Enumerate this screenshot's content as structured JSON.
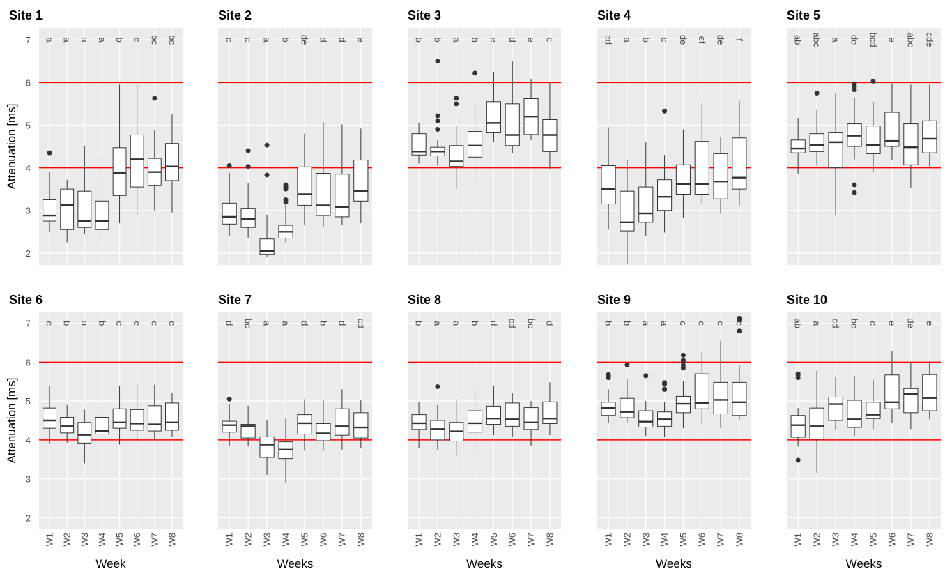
{
  "chart_data": [
    {
      "type": "boxplot",
      "title": "Site 1",
      "ylabel": "Attenuation [ms]",
      "ylim": [
        1.72,
        7.28
      ],
      "yticks": [
        2,
        3,
        4,
        5,
        6,
        7
      ],
      "hlines": [
        4,
        6
      ],
      "hline_color": "#ff0000",
      "letters": [
        "a",
        "a",
        "a",
        "a",
        "b",
        "c",
        "bc",
        "bc"
      ],
      "low": [
        2.5,
        2.25,
        2.45,
        2.35,
        2.7,
        2.9,
        3.0,
        2.95
      ],
      "q1": [
        2.75,
        2.55,
        2.6,
        2.55,
        3.35,
        3.55,
        3.58,
        3.7
      ],
      "median": [
        2.88,
        3.13,
        2.75,
        2.75,
        3.88,
        4.2,
        3.9,
        4.03
      ],
      "q3": [
        3.25,
        3.5,
        3.45,
        3.22,
        4.47,
        4.77,
        4.22,
        4.57
      ],
      "high": [
        3.9,
        3.72,
        4.52,
        4.22,
        5.95,
        5.98,
        4.88,
        5.25
      ],
      "outliers": [
        [
          4.35
        ],
        [],
        [],
        [],
        [],
        [],
        [
          5.63
        ],
        []
      ]
    },
    {
      "type": "boxplot",
      "title": "Site 2",
      "ylim": [
        1.72,
        7.28
      ],
      "yticks": [
        2,
        3,
        4,
        5,
        6,
        7
      ],
      "hlines": [
        4,
        6
      ],
      "hline_color": "#ff0000",
      "letters": [
        "c",
        "c",
        "a",
        "b",
        "de",
        "d",
        "d",
        "e"
      ],
      "low": [
        2.4,
        2.35,
        1.9,
        2.25,
        2.65,
        2.6,
        2.65,
        2.7
      ],
      "q1": [
        2.68,
        2.6,
        1.97,
        2.35,
        3.12,
        2.88,
        2.85,
        3.22
      ],
      "median": [
        2.85,
        2.8,
        2.05,
        2.5,
        3.38,
        3.12,
        3.08,
        3.45
      ],
      "q3": [
        3.17,
        3.05,
        2.33,
        2.65,
        4.02,
        3.87,
        3.85,
        4.18
      ],
      "high": [
        3.88,
        3.65,
        2.9,
        3.15,
        4.8,
        5.07,
        5.02,
        4.92
      ],
      "outliers": [
        [
          4.05
        ],
        [
          4.03,
          4.4
        ],
        [
          3.83,
          4.53
        ],
        [
          3.2,
          3.25,
          3.5,
          3.55,
          3.6
        ],
        [],
        [],
        [],
        []
      ]
    },
    {
      "type": "boxplot",
      "title": "Site 3",
      "ylim": [
        1.72,
        7.28
      ],
      "yticks": [
        2,
        3,
        4,
        5,
        6,
        7
      ],
      "hlines": [
        4,
        6
      ],
      "hline_color": "#ff0000",
      "letters": [
        "b",
        "b",
        "a",
        "b",
        "e",
        "d",
        "e",
        "c"
      ],
      "low": [
        4.1,
        4.05,
        3.5,
        3.72,
        4.6,
        4.35,
        4.65,
        3.98
      ],
      "q1": [
        4.3,
        4.28,
        4.03,
        4.25,
        4.82,
        4.52,
        4.78,
        4.38
      ],
      "median": [
        4.38,
        4.38,
        4.15,
        4.52,
        5.05,
        4.77,
        5.2,
        4.77
      ],
      "q3": [
        4.8,
        4.48,
        4.52,
        4.85,
        5.55,
        5.5,
        5.62,
        5.13
      ],
      "high": [
        5.05,
        4.65,
        4.98,
        5.5,
        6.25,
        6.5,
        6.08,
        6.0
      ],
      "outliers": [
        [],
        [
          4.9,
          5.1,
          5.22,
          6.5
        ],
        [
          5.5,
          5.63
        ],
        [
          6.22
        ],
        [],
        [],
        [],
        []
      ]
    },
    {
      "type": "boxplot",
      "title": "Site 4",
      "ylim": [
        1.72,
        7.28
      ],
      "yticks": [
        2,
        3,
        4,
        5,
        6,
        7
      ],
      "hlines": [
        4,
        6
      ],
      "hline_color": "#ff0000",
      "letters": [
        "cd",
        "a",
        "b",
        "c",
        "de",
        "ef",
        "de",
        "f"
      ],
      "low": [
        2.55,
        1.75,
        2.4,
        2.48,
        2.83,
        3.15,
        2.92,
        3.1
      ],
      "q1": [
        3.15,
        2.52,
        2.72,
        3.0,
        3.38,
        3.38,
        3.27,
        3.5
      ],
      "median": [
        3.5,
        2.72,
        2.93,
        3.32,
        3.62,
        3.62,
        3.68,
        3.77
      ],
      "q3": [
        4.05,
        3.45,
        3.55,
        3.72,
        4.07,
        4.62,
        4.33,
        4.7
      ],
      "high": [
        4.95,
        4.18,
        4.6,
        4.3,
        4.9,
        5.52,
        4.72,
        5.57
      ],
      "outliers": [
        [],
        [],
        [],
        [
          5.33
        ],
        [],
        [],
        [],
        []
      ]
    },
    {
      "type": "boxplot",
      "title": "Site 5",
      "ylim": [
        1.72,
        7.28
      ],
      "yticks": [
        2,
        3,
        4,
        5,
        6,
        7
      ],
      "hlines": [
        4,
        6
      ],
      "hline_color": "#ff0000",
      "letters": [
        "ab",
        "abc",
        "a",
        "de",
        "bcd",
        "e",
        "abc",
        "cde"
      ],
      "low": [
        3.85,
        4.05,
        2.88,
        4.2,
        3.9,
        4.18,
        3.52,
        4.0
      ],
      "q1": [
        4.35,
        4.38,
        4.0,
        4.5,
        4.33,
        4.5,
        4.07,
        4.35
      ],
      "median": [
        4.45,
        4.53,
        4.6,
        4.75,
        4.53,
        4.63,
        4.48,
        4.68
      ],
      "q3": [
        4.65,
        4.8,
        4.82,
        5.03,
        4.98,
        5.3,
        5.03,
        5.1
      ],
      "high": [
        5.17,
        5.35,
        5.75,
        5.65,
        5.55,
        5.98,
        5.95,
        5.95
      ],
      "outliers": [
        [],
        [
          5.75
        ],
        [],
        [
          3.42,
          3.6,
          5.83,
          5.9,
          5.97
        ],
        [
          6.03
        ],
        [],
        [],
        []
      ]
    },
    {
      "type": "boxplot",
      "title": "Site 6",
      "ylabel": "Attenuation [ms]",
      "xlabel": "Week",
      "categories": [
        "W1",
        "W2",
        "W3",
        "W4",
        "W5",
        "W6",
        "W7",
        "W8"
      ],
      "ylim": [
        1.72,
        7.28
      ],
      "yticks": [
        2,
        3,
        4,
        5,
        6,
        7
      ],
      "hlines": [
        4,
        6
      ],
      "hline_color": "#ff0000",
      "letters": [
        "c",
        "b",
        "a",
        "b",
        "c",
        "c",
        "c",
        "c"
      ],
      "low": [
        3.9,
        3.93,
        3.4,
        4.05,
        3.88,
        3.97,
        4.0,
        4.08
      ],
      "q1": [
        4.3,
        4.18,
        3.92,
        4.15,
        4.3,
        4.25,
        4.23,
        4.25
      ],
      "median": [
        4.5,
        4.35,
        4.13,
        4.23,
        4.45,
        4.42,
        4.4,
        4.45
      ],
      "q3": [
        4.82,
        4.58,
        4.45,
        4.58,
        4.8,
        4.78,
        4.88,
        4.95
      ],
      "high": [
        5.38,
        4.9,
        4.78,
        4.85,
        5.38,
        5.45,
        5.42,
        5.2
      ],
      "outliers": [
        [],
        [],
        [],
        [],
        [],
        [],
        [],
        []
      ]
    },
    {
      "type": "boxplot",
      "title": "Site 7",
      "xlabel": "Weeks",
      "categories": [
        "W1",
        "W2",
        "W3",
        "W4",
        "W5",
        "W6",
        "W7",
        "W8"
      ],
      "ylim": [
        1.72,
        7.28
      ],
      "yticks": [
        2,
        3,
        4,
        5,
        6,
        7
      ],
      "hlines": [
        4,
        6
      ],
      "hline_color": "#ff0000",
      "letters": [
        "d",
        "bc",
        "a",
        "a",
        "d",
        "b",
        "d",
        "cd"
      ],
      "low": [
        3.85,
        3.83,
        3.1,
        2.9,
        3.72,
        3.72,
        3.75,
        3.78
      ],
      "q1": [
        4.2,
        4.05,
        3.55,
        3.52,
        4.15,
        3.98,
        4.12,
        4.05
      ],
      "median": [
        4.38,
        4.35,
        3.88,
        3.75,
        4.43,
        4.17,
        4.35,
        4.32
      ],
      "q3": [
        4.48,
        4.4,
        4.08,
        3.95,
        4.65,
        4.42,
        4.8,
        4.7
      ],
      "high": [
        4.92,
        4.88,
        4.52,
        4.55,
        5.05,
        5.03,
        5.3,
        5.02
      ],
      "outliers": [
        [
          5.05
        ],
        [],
        [],
        [],
        [],
        [],
        [],
        []
      ]
    },
    {
      "type": "boxplot",
      "title": "Site 8",
      "xlabel": "Weeks",
      "categories": [
        "W1",
        "W2",
        "W3",
        "W4",
        "W5",
        "W6",
        "W7",
        "W8"
      ],
      "ylim": [
        1.72,
        7.28
      ],
      "yticks": [
        2,
        3,
        4,
        5,
        6,
        7
      ],
      "hlines": [
        4,
        6
      ],
      "hline_color": "#ff0000",
      "letters": [
        "b",
        "a",
        "a",
        "b",
        "d",
        "cd",
        "bc",
        "d"
      ],
      "low": [
        3.8,
        3.75,
        3.6,
        3.72,
        4.12,
        4.07,
        3.85,
        4.12
      ],
      "q1": [
        4.27,
        4.0,
        3.97,
        4.2,
        4.4,
        4.35,
        4.27,
        4.42
      ],
      "median": [
        4.43,
        4.28,
        4.22,
        4.43,
        4.55,
        4.53,
        4.45,
        4.55
      ],
      "q3": [
        4.65,
        4.5,
        4.45,
        4.75,
        4.87,
        4.95,
        4.83,
        4.98
      ],
      "high": [
        4.98,
        4.9,
        5.05,
        5.3,
        5.4,
        5.2,
        5.0,
        5.48
      ],
      "outliers": [
        [],
        [
          5.37
        ],
        [],
        [],
        [],
        [],
        [],
        []
      ]
    },
    {
      "type": "boxplot",
      "title": "Site 9",
      "xlabel": "Weeks",
      "categories": [
        "W1",
        "W2",
        "W3",
        "W4",
        "W5",
        "W6",
        "W7",
        "W8"
      ],
      "ylim": [
        1.72,
        7.28
      ],
      "yticks": [
        2,
        3,
        4,
        5,
        6,
        7
      ],
      "hlines": [
        4,
        6
      ],
      "hline_color": "#ff0000",
      "letters": [
        "b",
        "b",
        "a",
        "a",
        "c",
        "c",
        "c",
        "c"
      ],
      "low": [
        4.43,
        4.45,
        4.1,
        4.07,
        4.3,
        4.4,
        4.3,
        4.5
      ],
      "q1": [
        4.63,
        4.57,
        4.33,
        4.35,
        4.7,
        4.8,
        4.67,
        4.63
      ],
      "median": [
        4.82,
        4.72,
        4.47,
        4.53,
        4.93,
        4.95,
        5.03,
        4.97
      ],
      "q3": [
        4.97,
        5.07,
        4.75,
        4.72,
        5.12,
        5.7,
        5.48,
        5.48
      ],
      "high": [
        5.3,
        5.57,
        5.0,
        4.97,
        5.52,
        6.25,
        6.55,
        5.93
      ],
      "outliers": [
        [
          5.6,
          5.65,
          5.68
        ],
        [
          5.93
        ],
        [
          5.65
        ],
        [
          5.3,
          5.43,
          5.47
        ],
        [
          5.85,
          5.92,
          6.0,
          6.05,
          6.18
        ],
        [],
        [],
        [
          6.8,
          7.08,
          7.13
        ]
      ]
    },
    {
      "type": "boxplot",
      "title": "Site 10",
      "xlabel": "Weeks",
      "categories": [
        "W1",
        "W2",
        "W3",
        "W4",
        "W5",
        "W6",
        "W7",
        "W8"
      ],
      "ylim": [
        1.72,
        7.28
      ],
      "yticks": [
        2,
        3,
        4,
        5,
        6,
        7
      ],
      "hlines": [
        4,
        6
      ],
      "hline_color": "#ff0000",
      "letters": [
        "ab",
        "a",
        "cd",
        "bc",
        "c",
        "e",
        "de",
        "e"
      ],
      "low": [
        3.83,
        3.15,
        4.25,
        4.1,
        4.28,
        4.43,
        4.28,
        4.53
      ],
      "q1": [
        4.07,
        4.02,
        4.5,
        4.32,
        4.55,
        4.8,
        4.7,
        4.75
      ],
      "median": [
        4.38,
        4.35,
        4.92,
        4.53,
        4.65,
        4.97,
        5.18,
        5.08
      ],
      "q3": [
        4.63,
        4.82,
        5.1,
        5.02,
        4.97,
        5.67,
        5.32,
        5.68
      ],
      "high": [
        4.82,
        5.78,
        5.62,
        5.65,
        5.55,
        6.28,
        6.0,
        6.03
      ],
      "outliers": [
        [
          3.48,
          5.6,
          5.67,
          5.7
        ],
        [],
        [],
        [],
        [],
        [],
        [],
        []
      ]
    }
  ]
}
